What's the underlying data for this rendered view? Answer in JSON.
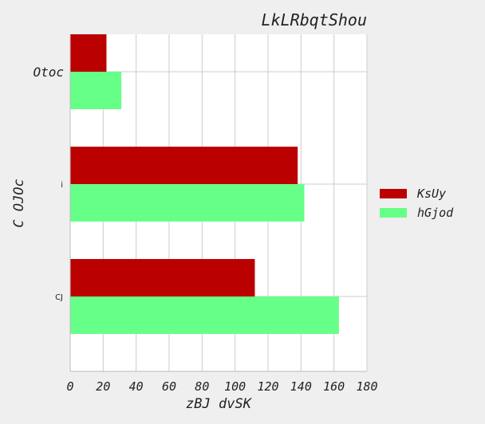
{
  "chart_data": {
    "type": "bar",
    "orientation": "horizontal",
    "title": "LkLRbqtShou",
    "xlabel": "zBJ  dvSK",
    "ylabel": "C OJOc",
    "categories": [
      "Otoc",
      "i",
      "CJ"
    ],
    "series": [
      {
        "name": "KsUy",
        "color": "#bb0000",
        "values": [
          22,
          138,
          112
        ]
      },
      {
        "name": "hGjod",
        "color": "#66ff88",
        "values": [
          31,
          142,
          163
        ]
      }
    ],
    "xlim": [
      0,
      180
    ],
    "xticks": [
      0,
      20,
      40,
      60,
      80,
      100,
      120,
      140,
      160,
      180
    ],
    "grid": true,
    "legend_position": "right"
  }
}
